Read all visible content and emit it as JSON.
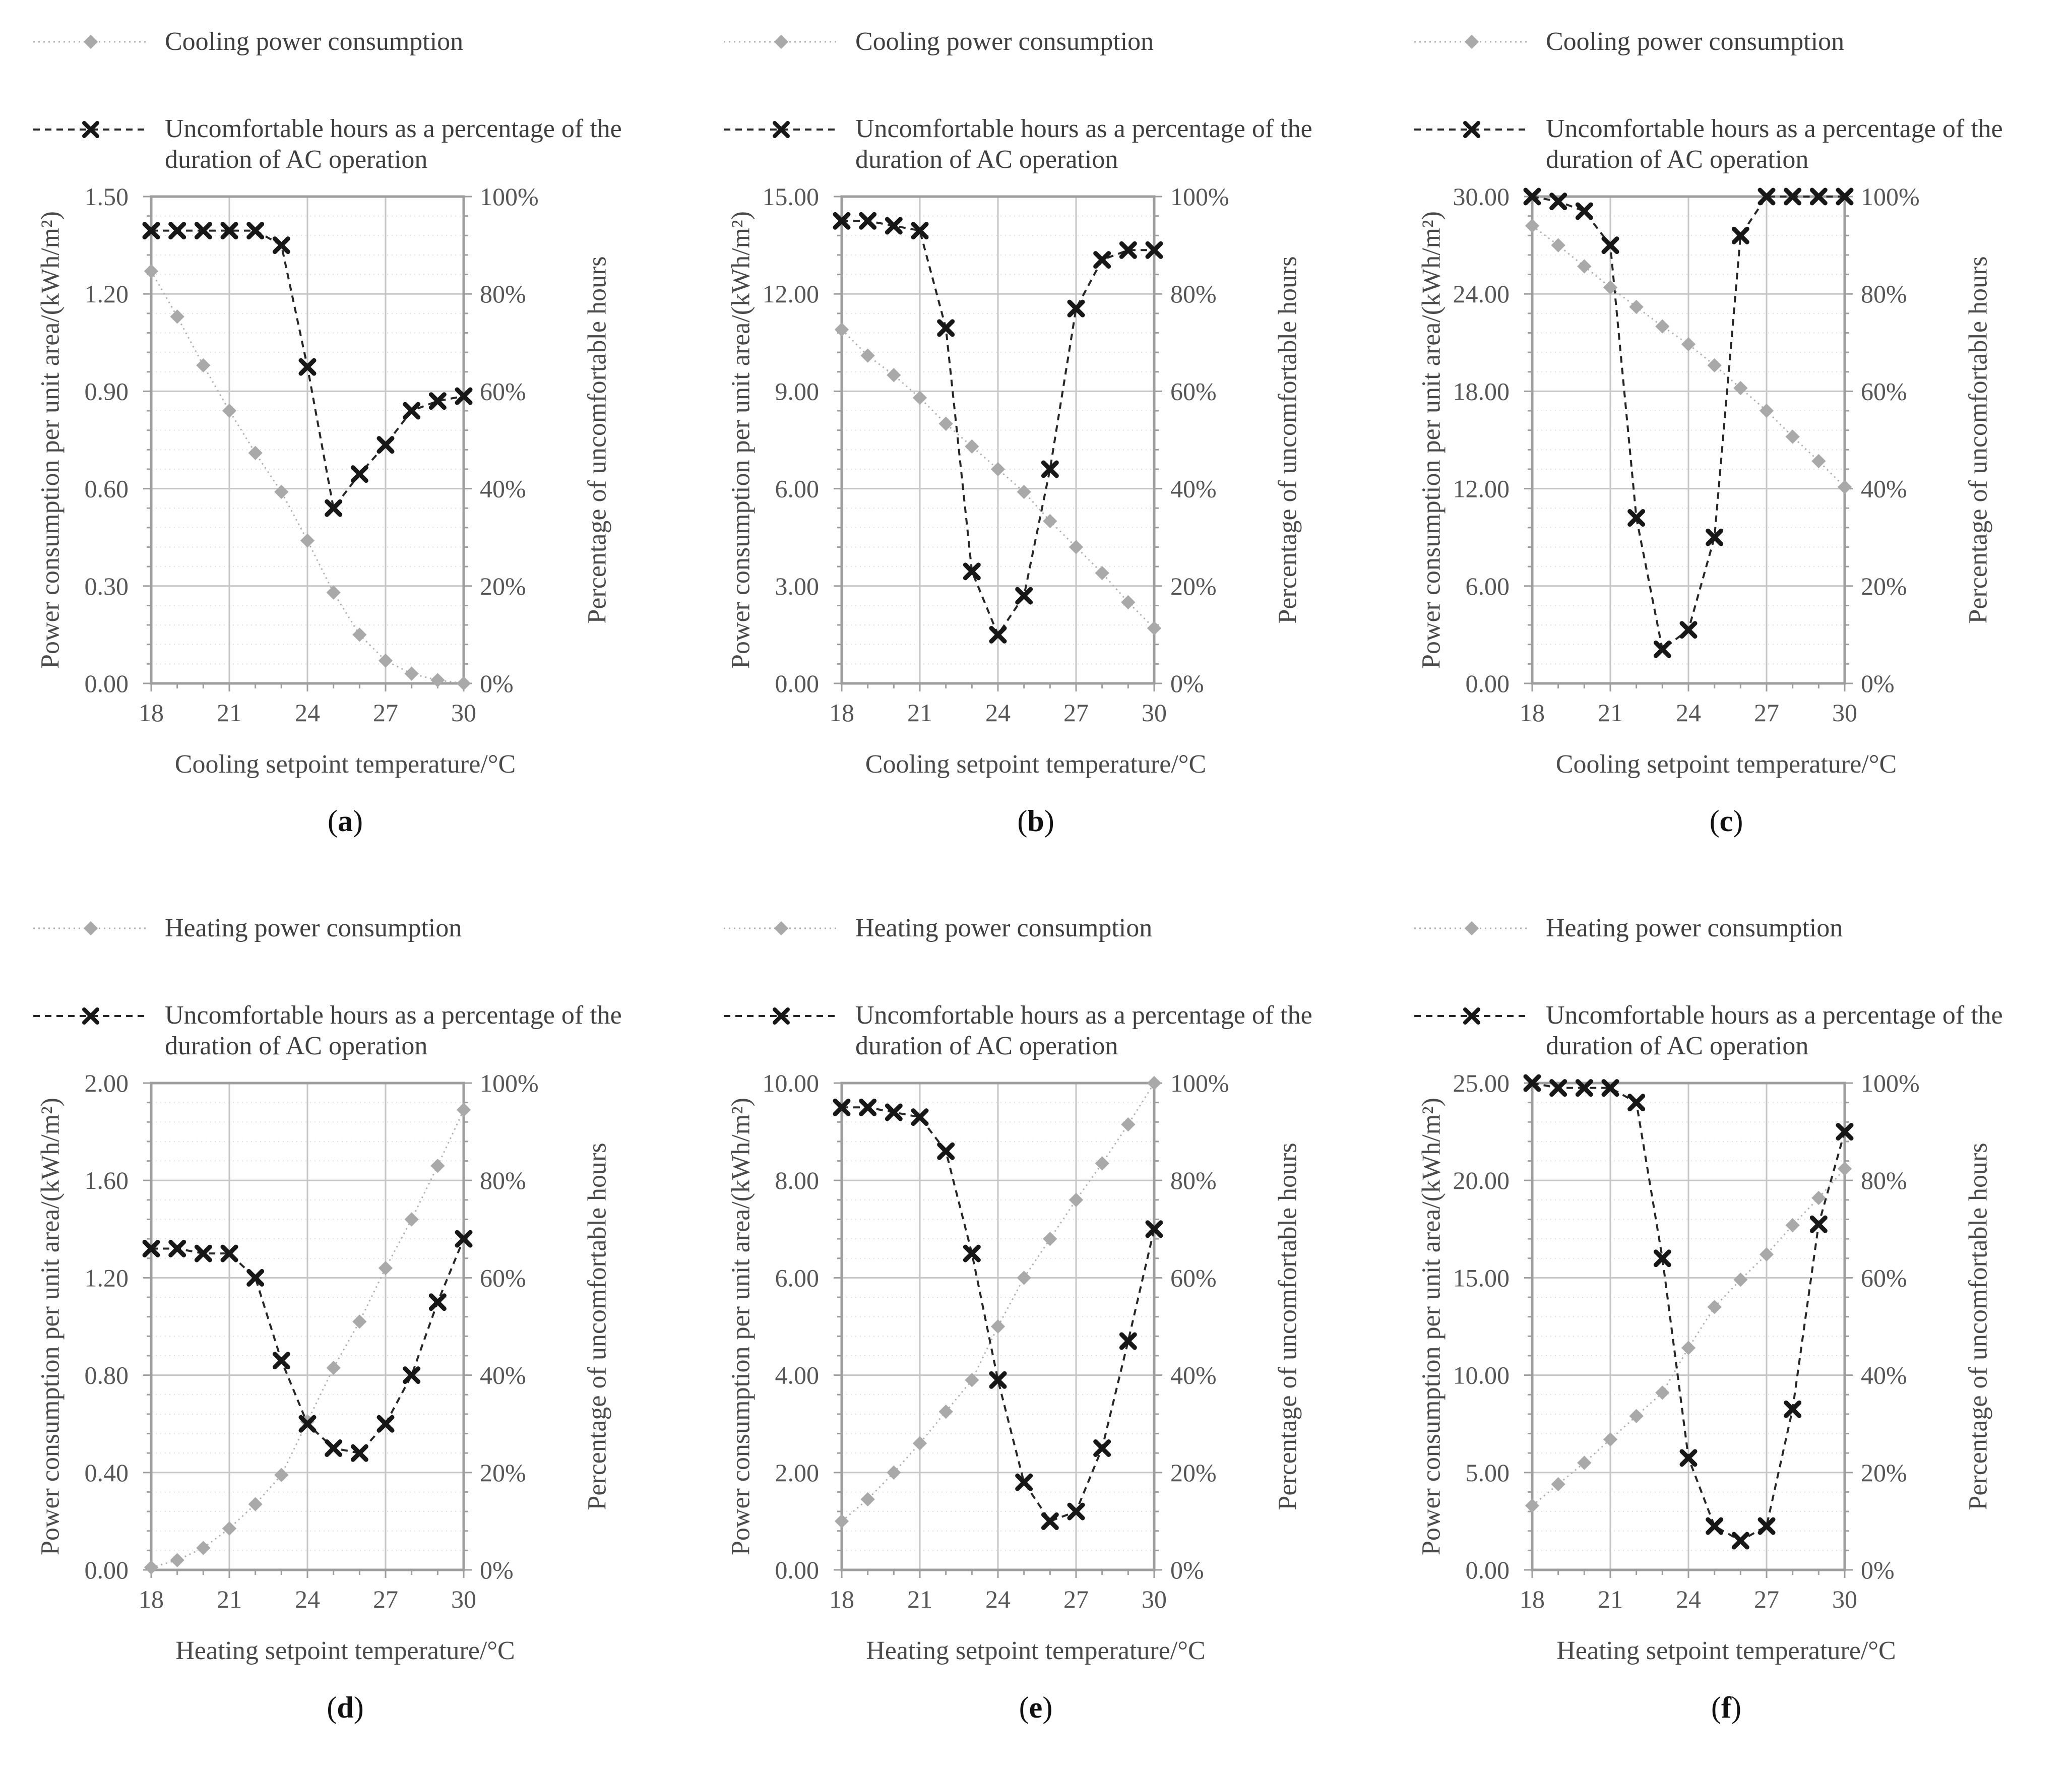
{
  "figure_type": "six-panel line chart figure",
  "chart_data": [
    {
      "id": "a",
      "type": "line",
      "panel_letter": "a",
      "legend": {
        "power": "Cooling power consumption",
        "pct": "Uncomfortable hours as a percentage of the duration of AC operation"
      },
      "left_axis_title": "Power consumption per unit area/(kWh/m²)",
      "right_axis_title": "Percentage of uncomfortable hours",
      "x_axis_title": "Cooling setpoint temperature/°C",
      "x": [
        18,
        19,
        20,
        21,
        22,
        23,
        24,
        25,
        26,
        27,
        28,
        29,
        30
      ],
      "x_major_ticks": [
        18,
        21,
        24,
        27,
        30
      ],
      "left_ylim": [
        0,
        1.5
      ],
      "left_tick_step": 0.3,
      "right_ylim_pct": [
        0,
        100
      ],
      "right_tick_step_pct": 20,
      "grid": "major solid + minor dotted",
      "series": [
        {
          "name": "Cooling power consumption",
          "axis": "left",
          "marker": "diamond",
          "values": [
            1.27,
            1.13,
            0.98,
            0.84,
            0.71,
            0.59,
            0.44,
            0.28,
            0.15,
            0.07,
            0.03,
            0.01,
            0.0
          ]
        },
        {
          "name": "Uncomfortable hours as a percentage of the duration of AC operation",
          "axis": "right",
          "marker": "x",
          "unit": "%",
          "values": [
            93,
            93,
            93,
            93,
            93,
            90,
            65,
            36,
            43,
            49,
            56,
            58,
            59
          ]
        }
      ]
    },
    {
      "id": "b",
      "type": "line",
      "panel_letter": "b",
      "legend": {
        "power": "Cooling power consumption",
        "pct": "Uncomfortable hours as a percentage of the duration of AC operation"
      },
      "left_axis_title": "Power consumption per unit area/(kWh/m²)",
      "right_axis_title": "Percentage of uncomfortable hours",
      "x_axis_title": "Cooling setpoint temperature/°C",
      "x": [
        18,
        19,
        20,
        21,
        22,
        23,
        24,
        25,
        26,
        27,
        28,
        29,
        30
      ],
      "x_major_ticks": [
        18,
        21,
        24,
        27,
        30
      ],
      "left_ylim": [
        0,
        15
      ],
      "left_tick_step": 3,
      "right_ylim_pct": [
        0,
        100
      ],
      "right_tick_step_pct": 20,
      "grid": "major solid + minor dotted",
      "series": [
        {
          "name": "Cooling power consumption",
          "axis": "left",
          "marker": "diamond",
          "values": [
            10.9,
            10.1,
            9.5,
            8.8,
            8.0,
            7.3,
            6.6,
            5.9,
            5.0,
            4.2,
            3.4,
            2.5,
            1.7
          ]
        },
        {
          "name": "Uncomfortable hours as a percentage of the duration of AC operation",
          "axis": "right",
          "marker": "x",
          "unit": "%",
          "values": [
            95,
            95,
            94,
            93,
            73,
            23,
            10,
            18,
            44,
            77,
            87,
            89,
            89
          ]
        }
      ]
    },
    {
      "id": "c",
      "type": "line",
      "panel_letter": "c",
      "legend": {
        "power": "Cooling power consumption",
        "pct": "Uncomfortable hours as a percentage of the duration of AC operation"
      },
      "left_axis_title": "Power consumption per unit area/(kWh/m²)",
      "right_axis_title": "Percentage of uncomfortable hours",
      "x_axis_title": "Cooling setpoint temperature/°C",
      "x": [
        18,
        19,
        20,
        21,
        22,
        23,
        24,
        25,
        26,
        27,
        28,
        29,
        30
      ],
      "x_major_ticks": [
        18,
        21,
        24,
        27,
        30
      ],
      "left_ylim": [
        0,
        30
      ],
      "left_tick_step": 6,
      "right_ylim_pct": [
        0,
        100
      ],
      "right_tick_step_pct": 20,
      "grid": "major solid + minor dotted",
      "series": [
        {
          "name": "Cooling power consumption",
          "axis": "left",
          "marker": "diamond",
          "values": [
            28.2,
            27.0,
            25.7,
            24.4,
            23.2,
            22.0,
            20.9,
            19.6,
            18.2,
            16.8,
            15.2,
            13.7,
            12.1
          ]
        },
        {
          "name": "Uncomfortable hours as a percentage of the duration of AC operation",
          "axis": "right",
          "marker": "x",
          "unit": "%",
          "values": [
            100,
            99,
            97,
            90,
            34,
            7,
            11,
            30,
            92,
            100,
            100,
            100,
            100
          ]
        }
      ]
    },
    {
      "id": "d",
      "type": "line",
      "panel_letter": "d",
      "legend": {
        "power": "Heating power consumption",
        "pct": "Uncomfortable hours as a percentage of the duration of AC operation"
      },
      "left_axis_title": "Power consumption per unit area/(kWh/m²)",
      "right_axis_title": "Percentage of uncomfortable hours",
      "x_axis_title": "Heating setpoint temperature/°C",
      "x": [
        18,
        19,
        20,
        21,
        22,
        23,
        24,
        25,
        26,
        27,
        28,
        29,
        30
      ],
      "x_major_ticks": [
        18,
        21,
        24,
        27,
        30
      ],
      "left_ylim": [
        0,
        2
      ],
      "left_tick_step": 0.4,
      "right_ylim_pct": [
        0,
        100
      ],
      "right_tick_step_pct": 20,
      "grid": "major solid + minor dotted",
      "series": [
        {
          "name": "Heating power consumption",
          "axis": "left",
          "marker": "diamond",
          "values": [
            0.01,
            0.04,
            0.09,
            0.17,
            0.27,
            0.39,
            0.61,
            0.83,
            1.02,
            1.24,
            1.44,
            1.66,
            1.89
          ]
        },
        {
          "name": "Uncomfortable hours as a percentage of the duration of AC operation",
          "axis": "right",
          "marker": "x",
          "unit": "%",
          "values": [
            66,
            66,
            65,
            65,
            60,
            43,
            30,
            25,
            24,
            30,
            40,
            55,
            68
          ]
        }
      ]
    },
    {
      "id": "e",
      "type": "line",
      "panel_letter": "e",
      "legend": {
        "power": "Heating power consumption",
        "pct": "Uncomfortable hours as a percentage of the duration of AC operation"
      },
      "left_axis_title": "Power consumption per unit area/(kWh/m²)",
      "right_axis_title": "Percentage of uncomfortable hours",
      "x_axis_title": "Heating setpoint temperature/°C",
      "x": [
        18,
        19,
        20,
        21,
        22,
        23,
        24,
        25,
        26,
        27,
        28,
        29,
        30
      ],
      "x_major_ticks": [
        18,
        21,
        24,
        27,
        30
      ],
      "left_ylim": [
        0,
        10
      ],
      "left_tick_step": 2,
      "right_ylim_pct": [
        0,
        100
      ],
      "right_tick_step_pct": 20,
      "grid": "major solid + minor dotted",
      "series": [
        {
          "name": "Heating power consumption",
          "axis": "left",
          "marker": "diamond",
          "values": [
            1.0,
            1.45,
            2.0,
            2.6,
            3.25,
            3.9,
            5.0,
            6.0,
            6.8,
            7.6,
            8.35,
            9.15,
            10.0
          ]
        },
        {
          "name": "Uncomfortable hours as a percentage of the duration of AC operation",
          "axis": "right",
          "marker": "x",
          "unit": "%",
          "values": [
            95,
            95,
            94,
            93,
            86,
            65,
            39,
            18,
            10,
            12,
            25,
            47,
            70
          ]
        }
      ]
    },
    {
      "id": "f",
      "type": "line",
      "panel_letter": "f",
      "legend": {
        "power": "Heating power consumption",
        "pct": "Uncomfortable hours as a percentage of the duration of AC operation"
      },
      "left_axis_title": "Power consumption per unit area/(kWh/m²)",
      "right_axis_title": "Percentage of uncomfortable hours",
      "x_axis_title": "Heating setpoint temperature/°C",
      "x": [
        18,
        19,
        20,
        21,
        22,
        23,
        24,
        25,
        26,
        27,
        28,
        29,
        30
      ],
      "x_major_ticks": [
        18,
        21,
        24,
        27,
        30
      ],
      "left_ylim": [
        0,
        25
      ],
      "left_tick_step": 5,
      "right_ylim_pct": [
        0,
        100
      ],
      "right_tick_step_pct": 20,
      "grid": "major solid + minor dotted",
      "series": [
        {
          "name": "Heating power consumption",
          "axis": "left",
          "marker": "diamond",
          "values": [
            3.3,
            4.4,
            5.5,
            6.7,
            7.9,
            9.1,
            11.4,
            13.5,
            14.9,
            16.2,
            17.7,
            19.1,
            20.6
          ]
        },
        {
          "name": "Uncomfortable hours as a percentage of the duration of AC operation",
          "axis": "right",
          "marker": "x",
          "unit": "%",
          "values": [
            100,
            99,
            99,
            99,
            96,
            64,
            23,
            9,
            6,
            9,
            33,
            71,
            90
          ]
        }
      ]
    }
  ],
  "style": {
    "power_series_color": "#b0b0b0",
    "pct_series_color": "#262626",
    "major_grid_color": "#c6c6c6",
    "minor_grid_color": "#dedede",
    "axis_color": "#9e9e9e",
    "text_color": "#4a4a4a"
  }
}
